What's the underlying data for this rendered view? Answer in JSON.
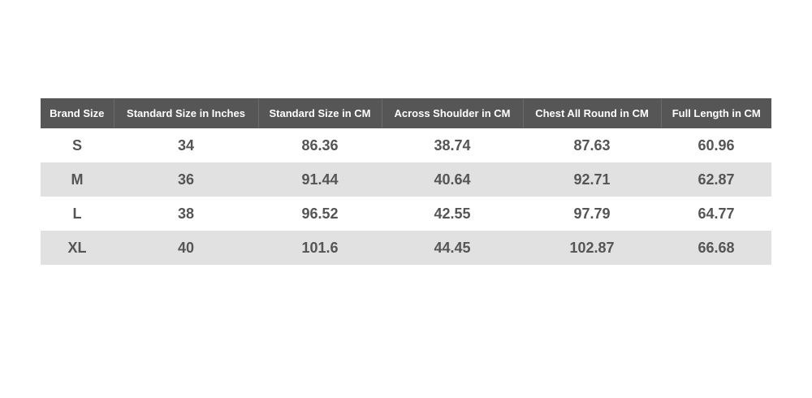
{
  "table": {
    "header": [
      "Brand Size",
      "Standard Size in Inches",
      "Standard Size in CM",
      "Across Shoulder in CM",
      "Chest All Round in CM",
      "Full Length in CM"
    ],
    "rows": [
      [
        "S",
        "34",
        "86.36",
        "38.74",
        "87.63",
        "60.96"
      ],
      [
        "M",
        "36",
        "91.44",
        "40.64",
        "92.71",
        "62.87"
      ],
      [
        "L",
        "38",
        "96.52",
        "42.55",
        "97.79",
        "64.77"
      ],
      [
        "XL",
        "40",
        "101.6",
        "44.45",
        "102.87",
        "66.68"
      ]
    ]
  }
}
